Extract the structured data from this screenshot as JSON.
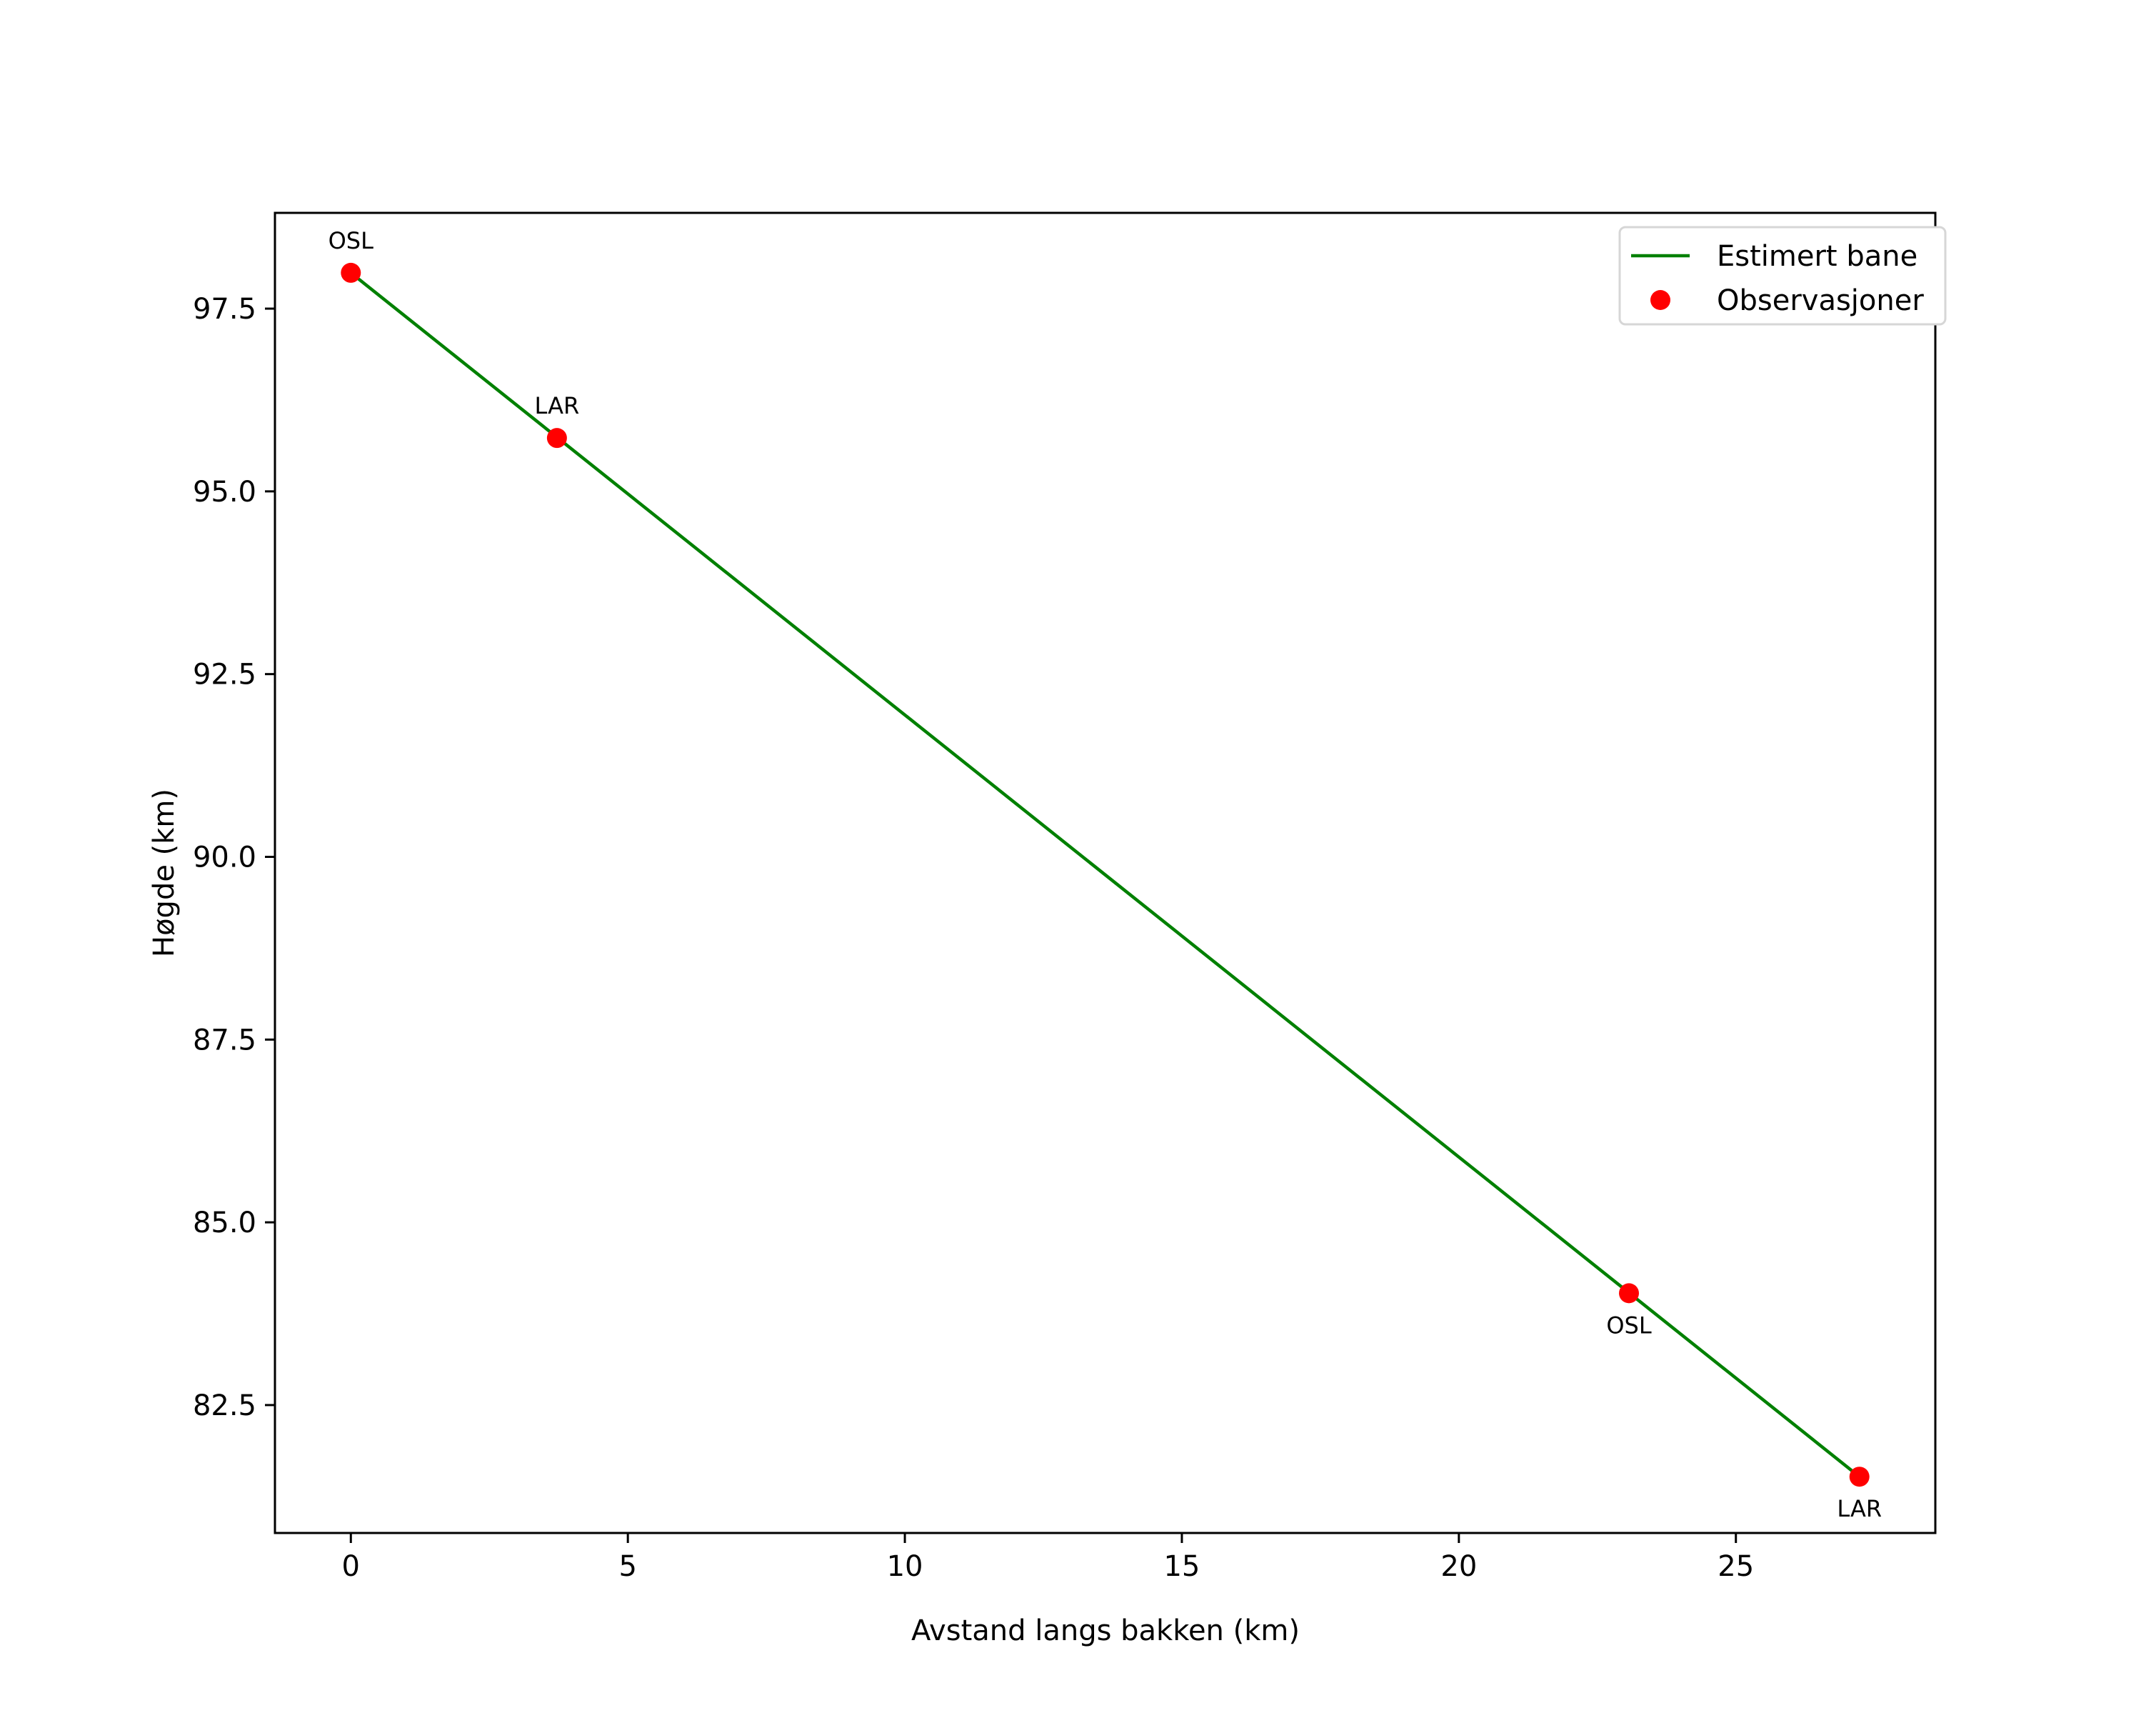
{
  "chart_data": {
    "type": "line",
    "title": "",
    "xlabel": "Avstand langs bakken (km)",
    "ylabel": "Høgde (km)",
    "xlim": [
      -1.37,
      28.6
    ],
    "ylim": [
      80.75,
      98.81
    ],
    "grid": false,
    "legend_position": "upper right",
    "xticks": [
      0,
      5,
      10,
      15,
      20,
      25
    ],
    "xtick_labels": [
      "0",
      "5",
      "10",
      "15",
      "20",
      "25"
    ],
    "yticks": [
      82.5,
      85.0,
      87.5,
      90.0,
      92.5,
      95.0,
      97.5
    ],
    "ytick_labels": [
      "82.5",
      "85.0",
      "87.5",
      "90.0",
      "92.5",
      "95.0",
      "97.5"
    ],
    "series": [
      {
        "name": "Estimert bane",
        "kind": "line",
        "color": "#008000",
        "x": [
          0.0,
          27.23
        ],
        "y": [
          97.99,
          81.52
        ]
      },
      {
        "name": "Observasjoner",
        "kind": "scatter",
        "color": "#ff0000",
        "x": [
          0.0,
          3.72,
          23.07,
          27.23
        ],
        "y": [
          97.99,
          95.73,
          84.03,
          81.52
        ],
        "labels": [
          "OSL",
          "LAR",
          "OSL",
          "LAR"
        ],
        "label_positions": [
          "above",
          "above",
          "below",
          "below"
        ]
      }
    ],
    "legend": [
      {
        "label": "Estimert bane",
        "marker": "line",
        "color": "#008000"
      },
      {
        "label": "Observasjoner",
        "marker": "dot",
        "color": "#ff0000"
      }
    ]
  }
}
